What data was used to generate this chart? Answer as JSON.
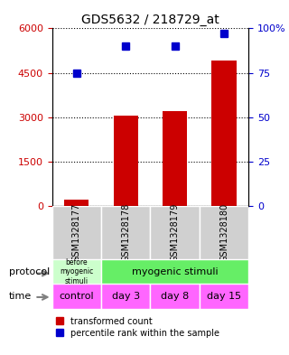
{
  "title": "GDS5632 / 218729_at",
  "samples": [
    "GSM1328177",
    "GSM1328178",
    "GSM1328179",
    "GSM1328180"
  ],
  "bar_values": [
    200,
    3050,
    3200,
    4900
  ],
  "percentile_values": [
    75,
    90,
    90,
    97
  ],
  "ylim_left": [
    0,
    6000
  ],
  "ylim_right": [
    0,
    100
  ],
  "yticks_left": [
    0,
    1500,
    3000,
    4500,
    6000
  ],
  "ytick_labels_left": [
    "0",
    "1500",
    "3000",
    "4500",
    "6000"
  ],
  "yticks_right": [
    0,
    25,
    50,
    75,
    100
  ],
  "ytick_labels_right": [
    "0",
    "25",
    "50",
    "75",
    "100%"
  ],
  "bar_color": "#cc0000",
  "dot_color": "#0000cc",
  "protocol_labels": [
    "before\nmyogenic\nstimuli",
    "myogenic stimuli"
  ],
  "protocol_colors": [
    "#ccffcc",
    "#66ff66"
  ],
  "time_labels": [
    "control",
    "day 3",
    "day 8",
    "day 15"
  ],
  "time_color": "#ff66ff",
  "grid_color": "#000000",
  "bg_color": "#ffffff",
  "sample_bg": "#d0d0d0"
}
